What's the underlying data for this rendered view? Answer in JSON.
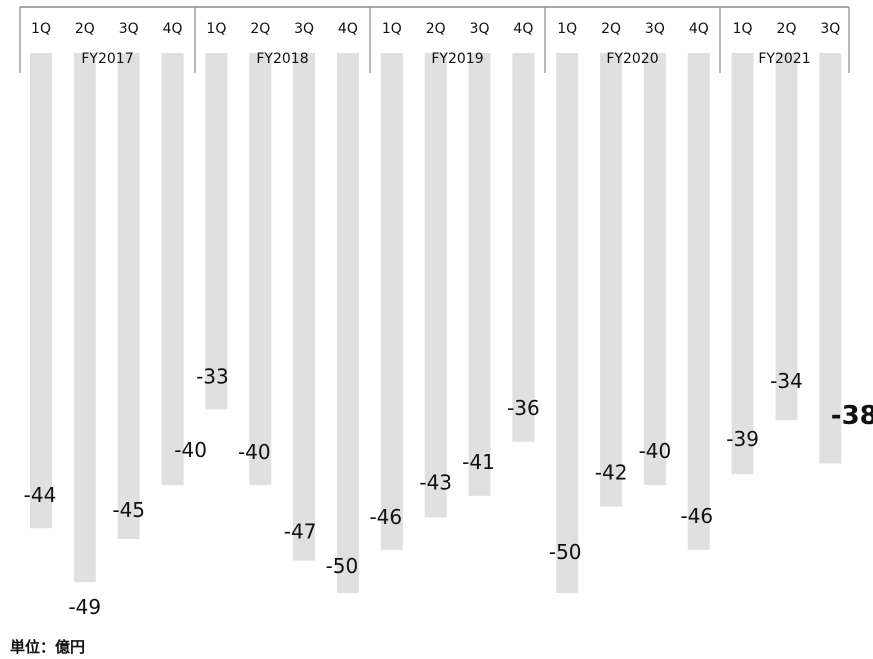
{
  "unit_note": "単位：億円",
  "colors": {
    "bar": "#e0e0e0",
    "axis": "#8a8a8a",
    "text": "#111111"
  },
  "chart_data": {
    "type": "bar",
    "title": "",
    "xlabel": "",
    "ylabel": "",
    "orientation": "downward-from-top",
    "ylim": [
      -50,
      0
    ],
    "groups": [
      {
        "label": "FY2017",
        "quarters": [
          "1Q",
          "2Q",
          "3Q",
          "4Q"
        ],
        "values": [
          -44,
          -49,
          -45,
          -40
        ]
      },
      {
        "label": "FY2018",
        "quarters": [
          "1Q",
          "2Q",
          "3Q",
          "4Q"
        ],
        "values": [
          -33,
          -40,
          -47,
          -50
        ]
      },
      {
        "label": "FY2019",
        "quarters": [
          "1Q",
          "2Q",
          "3Q",
          "4Q"
        ],
        "values": [
          -46,
          -43,
          -41,
          -36
        ]
      },
      {
        "label": "FY2020",
        "quarters": [
          "1Q",
          "2Q",
          "3Q",
          "4Q"
        ],
        "values": [
          -50,
          -42,
          -40,
          -46
        ]
      },
      {
        "label": "FY2021",
        "quarters": [
          "1Q",
          "2Q",
          "3Q"
        ],
        "values": [
          -39,
          -34,
          -38
        ]
      }
    ],
    "highlight": {
      "group": "FY2021",
      "quarter": "3Q"
    }
  }
}
